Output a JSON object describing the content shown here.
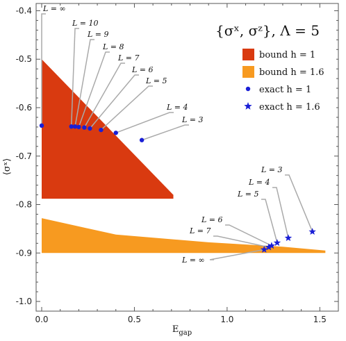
{
  "chart_data": {
    "type": "scatter",
    "title": "{σˣ, σᶻ}, Λ = 5",
    "xlabel": "E",
    "xlabel_sub": "gap",
    "ylabel": "⟨σˣ⟩",
    "xlim": [
      -0.03,
      1.6
    ],
    "ylim": [
      -1.02,
      -0.385
    ],
    "x_ticks": [
      0.0,
      0.5,
      1.0,
      1.5
    ],
    "x_tick_labels": [
      "0.0",
      "0.5",
      "1.0",
      "1.5"
    ],
    "y_ticks": [
      -0.4,
      -0.5,
      -0.6,
      -0.7,
      -0.8,
      -0.9,
      -1.0
    ],
    "y_tick_labels": [
      "-0.4",
      "-0.5",
      "-0.6",
      "-0.7",
      "-0.8",
      "-0.9",
      "-1.0"
    ],
    "grid": false,
    "legend_position": "top-right",
    "colors": {
      "bound_h1": "#d93a10",
      "bound_h16": "#f79a20",
      "exact": "#1a1fd6",
      "leader": "#aaaaaa"
    },
    "regions": [
      {
        "name": "bound h = 1",
        "polygon": [
          [
            0.0,
            -0.5
          ],
          [
            0.71,
            -0.78
          ],
          [
            0.71,
            -0.788
          ],
          [
            0.0,
            -0.788
          ]
        ]
      },
      {
        "name": "bound h = 1.6",
        "polygon": [
          [
            0.0,
            -0.828
          ],
          [
            0.4,
            -0.862
          ],
          [
            0.9,
            -0.878
          ],
          [
            1.3,
            -0.887
          ],
          [
            1.53,
            -0.895
          ],
          [
            1.53,
            -0.9
          ],
          [
            0.0,
            -0.9
          ]
        ]
      }
    ],
    "series": [
      {
        "name": "exact h = 1",
        "marker": "circle",
        "points": [
          {
            "x": 0.0,
            "y": -0.637,
            "label": "L = ∞"
          },
          {
            "x": 0.16,
            "y": -0.639,
            "label": "L = 10"
          },
          {
            "x": 0.18,
            "y": -0.639,
            "label": "L = 9"
          },
          {
            "x": 0.2,
            "y": -0.64,
            "label": "L = 8"
          },
          {
            "x": 0.23,
            "y": -0.641,
            "label": "L = 7"
          },
          {
            "x": 0.26,
            "y": -0.643,
            "label": "L = 6"
          },
          {
            "x": 0.32,
            "y": -0.646,
            "label": "L = 5"
          },
          {
            "x": 0.4,
            "y": -0.652,
            "label": "L = 4"
          },
          {
            "x": 0.54,
            "y": -0.667,
            "label": "L = 3"
          }
        ]
      },
      {
        "name": "exact h = 1.6",
        "marker": "star",
        "points": [
          {
            "x": 1.2,
            "y": -0.893,
            "label": "L = ∞"
          },
          {
            "x": 1.225,
            "y": -0.888,
            "label": "L = 7"
          },
          {
            "x": 1.24,
            "y": -0.885,
            "label": "L = 6"
          },
          {
            "x": 1.27,
            "y": -0.879,
            "label": "L = 5"
          },
          {
            "x": 1.33,
            "y": -0.869,
            "label": "L = 4"
          },
          {
            "x": 1.46,
            "y": -0.856,
            "label": "L = 3"
          }
        ]
      }
    ],
    "legend": [
      {
        "label": "bound h = 1",
        "kind": "swatch",
        "color": "#d93a10"
      },
      {
        "label": "bound h = 1.6",
        "kind": "swatch",
        "color": "#f79a20"
      },
      {
        "label": "exact h = 1",
        "kind": "circle",
        "color": "#1a1fd6"
      },
      {
        "label": "exact h = 1.6",
        "kind": "star",
        "color": "#1a1fd6"
      }
    ]
  }
}
